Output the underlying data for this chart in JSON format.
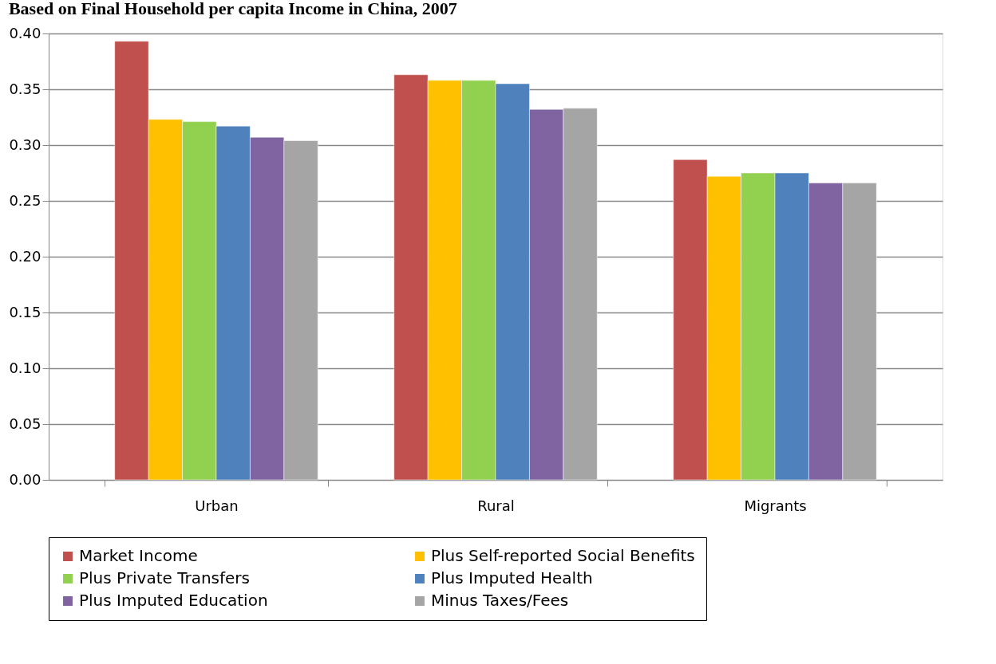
{
  "chart_data": {
    "type": "bar",
    "title": "Based on Final Household per capita Income in China, 2007",
    "categories": [
      "Urban",
      "Rural",
      "Migrants"
    ],
    "series": [
      {
        "name": "Market Income",
        "color": "#c0504d",
        "values": [
          0.393,
          0.363,
          0.287
        ]
      },
      {
        "name": "Plus Self-reported Social Benefits",
        "color": "#ffc000",
        "values": [
          0.323,
          0.358,
          0.272
        ]
      },
      {
        "name": "Plus Private Transfers",
        "color": "#92d050",
        "values": [
          0.321,
          0.358,
          0.275
        ]
      },
      {
        "name": "Plus Imputed Health",
        "color": "#4f81bd",
        "values": [
          0.317,
          0.355,
          0.275
        ]
      },
      {
        "name": "Plus Imputed Education",
        "color": "#8064a2",
        "values": [
          0.307,
          0.332,
          0.266
        ]
      },
      {
        "name": "Minus Taxes/Fees",
        "color": "#a5a5a5",
        "values": [
          0.304,
          0.333,
          0.266
        ]
      }
    ],
    "ylim": [
      0,
      0.4
    ],
    "yticks": [
      {
        "value": 0,
        "label": "0.00"
      },
      0.05,
      {
        "value": 0.1,
        "label": "0.10"
      },
      0.15,
      {
        "value": 0.2,
        "label": "0.20"
      },
      0.25,
      {
        "value": 0.3,
        "label": "0.30"
      },
      0.35,
      {
        "value": 0.4,
        "label": "0.40"
      }
    ],
    "grid": "y",
    "legend": "bottom"
  }
}
